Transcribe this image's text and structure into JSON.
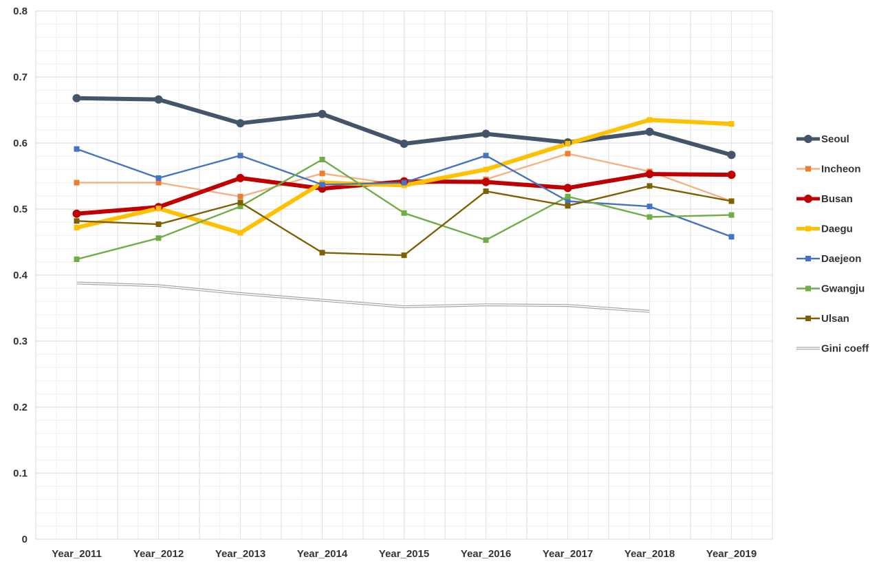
{
  "chart_data": {
    "type": "line",
    "title": "",
    "xlabel": "",
    "ylabel": "",
    "ylim": [
      0,
      0.8
    ],
    "yticks": [
      0,
      0.1,
      0.2,
      0.3,
      0.4,
      0.5,
      0.6,
      0.7,
      0.8
    ],
    "ytick_labels": [
      "0",
      "0.1",
      "0.2",
      "0.3",
      "0.4",
      "0.5",
      "0.6",
      "0.7",
      "0.8"
    ],
    "grid": true,
    "legend_position": "right",
    "categories": [
      "Year_2011",
      "Year_2012",
      "Year_2013",
      "Year_2014",
      "Year_2015",
      "Year_2016",
      "Year_2017",
      "Year_2018",
      "Year_2019"
    ],
    "series": [
      {
        "name": "Seoul",
        "color": "#44546a",
        "marker": "circle",
        "style": "thick",
        "values": [
          0.668,
          0.666,
          0.63,
          0.644,
          0.599,
          0.614,
          0.601,
          0.617,
          0.582
        ]
      },
      {
        "name": "Incheon",
        "color": "#f4b183",
        "marker": "square",
        "style": "thin",
        "markerColor": "#ed7d31",
        "values": [
          0.54,
          0.54,
          0.519,
          0.554,
          0.536,
          0.545,
          0.584,
          0.557,
          0.512
        ]
      },
      {
        "name": "Busan",
        "color": "#c00000",
        "marker": "circle",
        "style": "thick",
        "values": [
          0.493,
          0.503,
          0.547,
          0.531,
          0.542,
          0.541,
          0.532,
          0.553,
          0.552
        ]
      },
      {
        "name": "Daegu",
        "color": "#ffc000",
        "marker": "square",
        "style": "thick",
        "values": [
          0.472,
          0.501,
          0.464,
          0.54,
          0.536,
          0.56,
          0.599,
          0.635,
          0.629
        ]
      },
      {
        "name": "Daejeon",
        "color": "#4472c4",
        "marker": "square",
        "style": "thin",
        "values": [
          0.591,
          0.547,
          0.581,
          0.537,
          0.54,
          0.581,
          0.512,
          0.504,
          0.458
        ]
      },
      {
        "name": "Gwangju",
        "color": "#70ad47",
        "marker": "square",
        "style": "thin",
        "values": [
          0.424,
          0.456,
          0.504,
          0.575,
          0.494,
          0.453,
          0.519,
          0.488,
          0.491
        ]
      },
      {
        "name": "Ulsan",
        "color": "#7f6000",
        "marker": "square",
        "style": "thin",
        "values": [
          0.482,
          0.477,
          0.51,
          0.434,
          0.43,
          0.527,
          0.505,
          0.535,
          0.512
        ]
      },
      {
        "name": "Gini coeff",
        "color": "#a6a6a6",
        "marker": "none",
        "style": "double",
        "values": [
          0.388,
          0.384,
          0.372,
          0.362,
          0.352,
          0.355,
          0.354,
          0.345,
          null
        ]
      }
    ]
  }
}
